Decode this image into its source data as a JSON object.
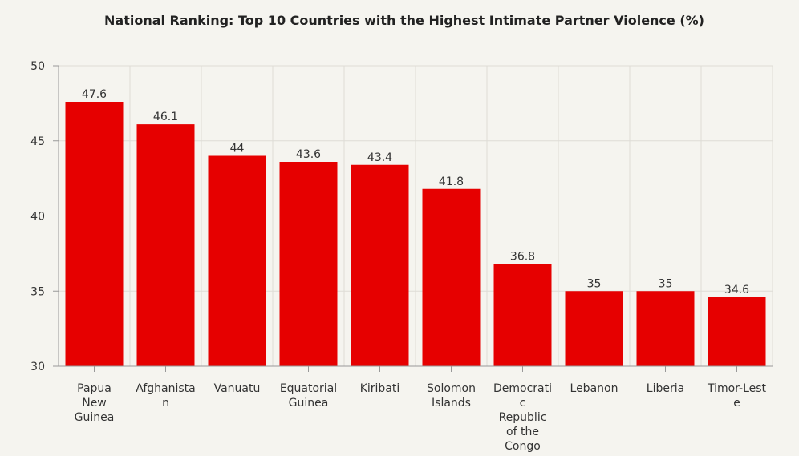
{
  "chart_data": {
    "type": "bar",
    "title": "National Ranking: Top 10 Countries with the Highest Intimate Partner Violence (%)",
    "xlabel": "",
    "ylabel": "",
    "ylim": [
      30,
      50
    ],
    "yticks": [
      30,
      35,
      40,
      45,
      50
    ],
    "grid": true,
    "categories": [
      "Papua New Guinea",
      "Afghanistan",
      "Vanuatu",
      "Equatorial Guinea",
      "Kiribati",
      "Solomon Islands",
      "Democratic Republic of the Congo",
      "Lebanon",
      "Liberia",
      "Timor-Leste"
    ],
    "values": [
      47.6,
      46.1,
      44,
      43.6,
      43.4,
      41.8,
      36.8,
      35,
      35,
      34.6
    ],
    "bar_color": "#e60000"
  }
}
